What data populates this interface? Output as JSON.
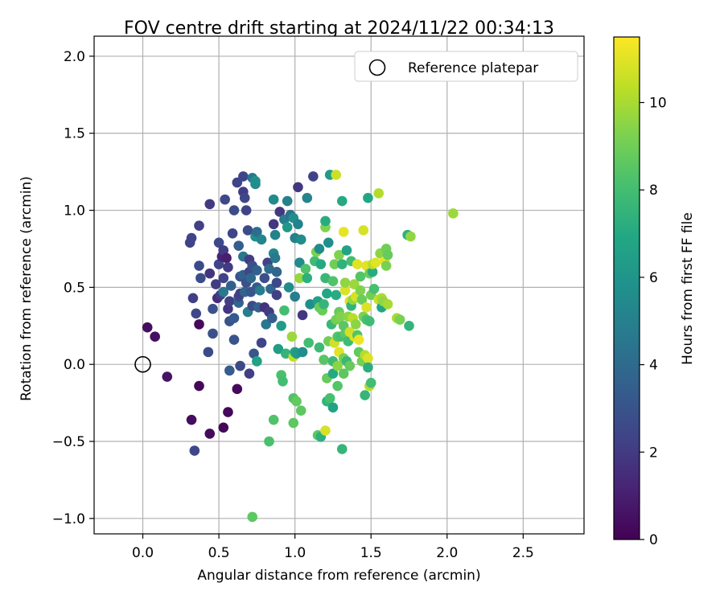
{
  "chart_data": {
    "type": "scatter",
    "title": "FOV centre drift starting at 2024/11/22 00:34:13",
    "xlabel": "Angular distance from reference (arcmin)",
    "ylabel": "Rotation from reference (arcmin)",
    "xlim": [
      -0.32,
      2.9
    ],
    "ylim": [
      -1.1,
      2.13
    ],
    "x_ticks": [
      0.0,
      0.5,
      1.0,
      1.5,
      2.0,
      2.5
    ],
    "x_tick_labels": [
      "0.0",
      "0.5",
      "1.0",
      "1.5",
      "2.0",
      "2.5"
    ],
    "y_ticks": [
      -1.0,
      -0.5,
      0.0,
      0.5,
      1.0,
      1.5,
      2.0
    ],
    "y_tick_labels": [
      "−1.0",
      "−0.5",
      "0.0",
      "0.5",
      "1.0",
      "1.5",
      "2.0"
    ],
    "grid": true,
    "legend": {
      "placement": "top-right",
      "entries": [
        "Reference platepar"
      ]
    },
    "reference_point": {
      "x": 0.0,
      "y": 0.0
    },
    "colorbar": {
      "label": "Hours from first FF file",
      "range": [
        0,
        11.5
      ],
      "ticks": [
        0,
        2,
        4,
        6,
        8,
        10
      ],
      "tick_labels": [
        "0",
        "2",
        "4",
        "6",
        "8",
        "10"
      ],
      "colormap": "viridis"
    },
    "points": [
      {
        "x": 0.03,
        "y": 0.24,
        "h": 0.4
      },
      {
        "x": 0.08,
        "y": 0.18,
        "h": 0.5
      },
      {
        "x": 0.16,
        "y": -0.08,
        "h": 0.6
      },
      {
        "x": 0.37,
        "y": 0.26,
        "h": 0.3
      },
      {
        "x": 0.37,
        "y": -0.14,
        "h": 0.2
      },
      {
        "x": 0.32,
        "y": -0.36,
        "h": 0.4
      },
      {
        "x": 0.44,
        "y": -0.45,
        "h": 0.3
      },
      {
        "x": 0.53,
        "y": -0.41,
        "h": 0.2
      },
      {
        "x": 0.56,
        "y": -0.31,
        "h": 0.2
      },
      {
        "x": 0.62,
        "y": -0.16,
        "h": 0.3
      },
      {
        "x": 0.34,
        "y": -0.56,
        "h": 2.5
      },
      {
        "x": 0.33,
        "y": 0.43,
        "h": 2.2
      },
      {
        "x": 0.35,
        "y": 0.33,
        "h": 2.5
      },
      {
        "x": 0.43,
        "y": 0.08,
        "h": 2.6
      },
      {
        "x": 0.46,
        "y": 0.2,
        "h": 2.8
      },
      {
        "x": 0.31,
        "y": 0.79,
        "h": 2.3
      },
      {
        "x": 0.32,
        "y": 0.82,
        "h": 2.4
      },
      {
        "x": 0.37,
        "y": 0.64,
        "h": 2.6
      },
      {
        "x": 0.38,
        "y": 0.56,
        "h": 2.7
      },
      {
        "x": 0.37,
        "y": 0.9,
        "h": 2.2
      },
      {
        "x": 0.44,
        "y": 1.04,
        "h": 2.0
      },
      {
        "x": 0.44,
        "y": 0.59,
        "h": 1.8
      },
      {
        "x": 0.46,
        "y": 0.36,
        "h": 2.9
      },
      {
        "x": 0.48,
        "y": 0.52,
        "h": 2.0
      },
      {
        "x": 0.49,
        "y": 0.43,
        "h": 1.5
      },
      {
        "x": 0.5,
        "y": 0.79,
        "h": 2.6
      },
      {
        "x": 0.5,
        "y": 0.65,
        "h": 2.4
      },
      {
        "x": 0.51,
        "y": 0.45,
        "h": 2.1
      },
      {
        "x": 0.53,
        "y": 0.56,
        "h": 2.3
      },
      {
        "x": 0.52,
        "y": 0.7,
        "h": 1.2
      },
      {
        "x": 0.53,
        "y": 0.47,
        "h": 4.6
      },
      {
        "x": 0.53,
        "y": 0.74,
        "h": 2.1
      },
      {
        "x": 0.54,
        "y": 1.07,
        "h": 2.6
      },
      {
        "x": 0.55,
        "y": 0.69,
        "h": 1.0
      },
      {
        "x": 0.56,
        "y": 0.63,
        "h": 2.0
      },
      {
        "x": 0.56,
        "y": 0.36,
        "h": 1.8
      },
      {
        "x": 0.57,
        "y": 0.28,
        "h": 3.0
      },
      {
        "x": 0.57,
        "y": 0.41,
        "h": 2.2
      },
      {
        "x": 0.58,
        "y": 0.51,
        "h": 3.5
      },
      {
        "x": 0.59,
        "y": 0.85,
        "h": 2.4
      },
      {
        "x": 0.6,
        "y": 1.0,
        "h": 2.7
      },
      {
        "x": 0.6,
        "y": 0.3,
        "h": 3.3
      },
      {
        "x": 0.6,
        "y": 0.16,
        "h": 3.0
      },
      {
        "x": 0.57,
        "y": -0.04,
        "h": 3.4
      },
      {
        "x": 0.62,
        "y": 1.18,
        "h": 2.3
      },
      {
        "x": 0.63,
        "y": 0.4,
        "h": 3.8
      },
      {
        "x": 0.63,
        "y": 0.77,
        "h": 3.4
      },
      {
        "x": 0.63,
        "y": 0.44,
        "h": 2.5
      },
      {
        "x": 0.64,
        "y": 0.57,
        "h": 3.0
      },
      {
        "x": 0.64,
        "y": 0.46,
        "h": 2.2
      },
      {
        "x": 0.64,
        "y": -0.01,
        "h": 2.6
      },
      {
        "x": 0.66,
        "y": 1.22,
        "h": 2.4
      },
      {
        "x": 0.66,
        "y": 1.12,
        "h": 2.1
      },
      {
        "x": 0.66,
        "y": 0.58,
        "h": 3.6
      },
      {
        "x": 0.66,
        "y": 0.7,
        "h": 4.5
      },
      {
        "x": 0.67,
        "y": 0.47,
        "h": 3.7
      },
      {
        "x": 0.67,
        "y": 1.08,
        "h": 2.5
      },
      {
        "x": 0.68,
        "y": 1.0,
        "h": 2.3
      },
      {
        "x": 0.68,
        "y": 0.53,
        "h": 2.9
      },
      {
        "x": 0.69,
        "y": 0.87,
        "h": 2.7
      },
      {
        "x": 0.69,
        "y": 0.34,
        "h": 4.9
      },
      {
        "x": 0.7,
        "y": 0.6,
        "h": 2.5
      },
      {
        "x": 0.7,
        "y": 0.68,
        "h": 2.1
      },
      {
        "x": 0.71,
        "y": 0.47,
        "h": 3.1
      },
      {
        "x": 0.71,
        "y": 0.56,
        "h": 3.9
      },
      {
        "x": 0.72,
        "y": 0.38,
        "h": 2.6
      },
      {
        "x": 0.72,
        "y": 1.21,
        "h": 4.6
      },
      {
        "x": 0.72,
        "y": 0.64,
        "h": 2.9
      },
      {
        "x": 0.73,
        "y": 0.07,
        "h": 3.1
      },
      {
        "x": 0.7,
        "y": -0.06,
        "h": 2.2
      },
      {
        "x": 0.74,
        "y": 1.19,
        "h": 5.9
      },
      {
        "x": 0.74,
        "y": 1.17,
        "h": 5.6
      },
      {
        "x": 0.74,
        "y": 0.83,
        "h": 5.7
      },
      {
        "x": 0.75,
        "y": 0.86,
        "h": 4.1
      },
      {
        "x": 0.75,
        "y": 0.61,
        "h": 3.6
      },
      {
        "x": 0.75,
        "y": 0.5,
        "h": 3.3
      },
      {
        "x": 0.75,
        "y": 0.02,
        "h": 6.6
      },
      {
        "x": 0.76,
        "y": 0.37,
        "h": 3.6
      },
      {
        "x": 0.77,
        "y": 0.48,
        "h": 4.8
      },
      {
        "x": 0.78,
        "y": 0.81,
        "h": 5.2
      },
      {
        "x": 0.78,
        "y": 0.14,
        "h": 2.4
      },
      {
        "x": 0.8,
        "y": 0.37,
        "h": 1.7
      },
      {
        "x": 0.8,
        "y": 0.56,
        "h": 2.8
      },
      {
        "x": 0.81,
        "y": 0.26,
        "h": 4.5
      },
      {
        "x": 0.82,
        "y": 0.66,
        "h": 2.3
      },
      {
        "x": 0.83,
        "y": 0.62,
        "h": 4.1
      },
      {
        "x": 0.83,
        "y": 0.34,
        "h": 2.0
      },
      {
        "x": 0.84,
        "y": 0.49,
        "h": 3.9
      },
      {
        "x": 0.85,
        "y": 0.3,
        "h": 3.5
      },
      {
        "x": 0.86,
        "y": 0.72,
        "h": 5.3
      },
      {
        "x": 0.86,
        "y": 1.07,
        "h": 5.5
      },
      {
        "x": 0.86,
        "y": 0.91,
        "h": 1.9
      },
      {
        "x": 0.87,
        "y": 0.69,
        "h": 4.6
      },
      {
        "x": 0.87,
        "y": 0.84,
        "h": 5.1
      },
      {
        "x": 0.88,
        "y": 0.53,
        "h": 2.6
      },
      {
        "x": 0.88,
        "y": 0.6,
        "h": 3.8
      },
      {
        "x": 0.88,
        "y": 0.45,
        "h": 2.2
      },
      {
        "x": 0.89,
        "y": 0.1,
        "h": 6.4
      },
      {
        "x": 0.86,
        "y": -0.36,
        "h": 8.3
      },
      {
        "x": 0.83,
        "y": -0.5,
        "h": 8.2
      },
      {
        "x": 0.72,
        "y": -0.99,
        "h": 8.6
      },
      {
        "x": 0.9,
        "y": 0.99,
        "h": 1.9
      },
      {
        "x": 0.91,
        "y": 0.25,
        "h": 6.4
      },
      {
        "x": 0.91,
        "y": -0.07,
        "h": 8.2
      },
      {
        "x": 0.92,
        "y": -0.11,
        "h": 8.0
      },
      {
        "x": 0.93,
        "y": 0.94,
        "h": 4.8
      },
      {
        "x": 0.93,
        "y": 0.35,
        "h": 8.0
      },
      {
        "x": 0.94,
        "y": 0.07,
        "h": 7.5
      },
      {
        "x": 0.95,
        "y": 1.06,
        "h": 5.1
      },
      {
        "x": 0.95,
        "y": 0.89,
        "h": 6.1
      },
      {
        "x": 0.96,
        "y": 0.5,
        "h": 5.6
      },
      {
        "x": 0.97,
        "y": 0.97,
        "h": 4.3
      },
      {
        "x": 0.98,
        "y": 0.18,
        "h": 9.8
      },
      {
        "x": 0.99,
        "y": 0.95,
        "h": 5.7
      },
      {
        "x": 0.99,
        "y": 0.05,
        "h": 10.4
      },
      {
        "x": 0.99,
        "y": -0.22,
        "h": 8.3
      },
      {
        "x": 0.99,
        "y": -0.38,
        "h": 8.6
      },
      {
        "x": 1.0,
        "y": 0.82,
        "h": 5.0
      },
      {
        "x": 1.0,
        "y": 0.08,
        "h": 6.7
      },
      {
        "x": 1.0,
        "y": 0.44,
        "h": 4.9
      },
      {
        "x": 1.01,
        "y": 0.07,
        "h": 6.2
      },
      {
        "x": 1.01,
        "y": -0.24,
        "h": 8.7
      },
      {
        "x": 1.02,
        "y": 1.15,
        "h": 1.9
      },
      {
        "x": 1.02,
        "y": 0.91,
        "h": 5.1
      },
      {
        "x": 1.03,
        "y": 0.66,
        "h": 5.5
      },
      {
        "x": 1.03,
        "y": 0.56,
        "h": 9.7
      },
      {
        "x": 1.04,
        "y": -0.3,
        "h": 8.6
      },
      {
        "x": 1.04,
        "y": 0.81,
        "h": 5.6
      },
      {
        "x": 1.05,
        "y": 0.32,
        "h": 1.9
      },
      {
        "x": 1.05,
        "y": 0.08,
        "h": 5.6
      },
      {
        "x": 1.07,
        "y": 0.62,
        "h": 8.3
      },
      {
        "x": 1.08,
        "y": 1.08,
        "h": 5.2
      },
      {
        "x": 1.08,
        "y": 0.56,
        "h": 7.3
      },
      {
        "x": 1.09,
        "y": 0.14,
        "h": 8.0
      },
      {
        "x": 1.1,
        "y": 0.39,
        "h": 5.7
      },
      {
        "x": 1.12,
        "y": 1.22,
        "h": 2.3
      },
      {
        "x": 1.13,
        "y": 0.67,
        "h": 7.9
      },
      {
        "x": 1.14,
        "y": 0.73,
        "h": 9.2
      },
      {
        "x": 1.15,
        "y": 0.41,
        "h": 6.5
      },
      {
        "x": 1.15,
        "y": -0.46,
        "h": 8.6
      },
      {
        "x": 1.16,
        "y": 0.11,
        "h": 7.8
      },
      {
        "x": 1.16,
        "y": 0.37,
        "h": 8.8
      },
      {
        "x": 1.16,
        "y": 0.75,
        "h": 5.5
      },
      {
        "x": 1.17,
        "y": 0.65,
        "h": 7.0
      },
      {
        "x": 1.17,
        "y": -0.47,
        "h": 7.3
      },
      {
        "x": 1.18,
        "y": 0.35,
        "h": 8.9
      },
      {
        "x": 1.19,
        "y": 0.39,
        "h": 7.6
      },
      {
        "x": 1.19,
        "y": 0.03,
        "h": 8.5
      },
      {
        "x": 1.2,
        "y": 0.56,
        "h": 7.7
      },
      {
        "x": 1.2,
        "y": 0.89,
        "h": 9.3
      },
      {
        "x": 1.2,
        "y": 0.93,
        "h": 7.1
      },
      {
        "x": 1.2,
        "y": -0.43,
        "h": 10.8
      },
      {
        "x": 1.21,
        "y": 0.46,
        "h": 6.9
      },
      {
        "x": 1.21,
        "y": -0.09,
        "h": 8.8
      },
      {
        "x": 1.21,
        "y": -0.24,
        "h": 7.5
      },
      {
        "x": 1.22,
        "y": 0.79,
        "h": 5.7
      },
      {
        "x": 1.22,
        "y": 0.15,
        "h": 9.0
      },
      {
        "x": 1.23,
        "y": 1.23,
        "h": 6.3
      },
      {
        "x": 1.23,
        "y": -0.22,
        "h": 8.1
      },
      {
        "x": 1.24,
        "y": 0.26,
        "h": 7.7
      },
      {
        "x": 1.25,
        "y": -0.28,
        "h": 6.7
      },
      {
        "x": 1.25,
        "y": 0.54,
        "h": 8.3
      },
      {
        "x": 1.25,
        "y": 0.02,
        "h": 7.8
      },
      {
        "x": 1.25,
        "y": -0.06,
        "h": 7.0
      },
      {
        "x": 1.26,
        "y": 0.65,
        "h": 9.0
      },
      {
        "x": 1.26,
        "y": 0.14,
        "h": 10.7
      },
      {
        "x": 1.27,
        "y": 0.45,
        "h": 7.1
      },
      {
        "x": 1.27,
        "y": 1.23,
        "h": 10.6
      },
      {
        "x": 1.27,
        "y": 0.29,
        "h": 9.1
      },
      {
        "x": 1.28,
        "y": 0.18,
        "h": 8.4
      },
      {
        "x": 1.28,
        "y": -0.01,
        "h": 9.5
      },
      {
        "x": 1.28,
        "y": -0.14,
        "h": 8.4
      },
      {
        "x": 1.29,
        "y": 0.34,
        "h": 8.8
      },
      {
        "x": 1.29,
        "y": 0.71,
        "h": 9.3
      },
      {
        "x": 1.29,
        "y": 0.08,
        "h": 11.0
      },
      {
        "x": 1.3,
        "y": 0.31,
        "h": 9.3
      },
      {
        "x": 1.3,
        "y": 0.18,
        "h": 8.1
      },
      {
        "x": 1.31,
        "y": -0.55,
        "h": 7.6
      },
      {
        "x": 1.31,
        "y": 1.06,
        "h": 7.0
      },
      {
        "x": 1.31,
        "y": 0.65,
        "h": 7.4
      },
      {
        "x": 1.32,
        "y": 0.86,
        "h": 11.1
      },
      {
        "x": 1.32,
        "y": 0.25,
        "h": 8.5
      },
      {
        "x": 1.32,
        "y": 0.04,
        "h": 9.1
      },
      {
        "x": 1.32,
        "y": -0.06,
        "h": 8.6
      },
      {
        "x": 1.33,
        "y": 0.2,
        "h": 8.6
      },
      {
        "x": 1.33,
        "y": 0.48,
        "h": 10.9
      },
      {
        "x": 1.33,
        "y": 0.53,
        "h": 9.6
      },
      {
        "x": 1.34,
        "y": 0.74,
        "h": 6.7
      },
      {
        "x": 1.34,
        "y": 0.02,
        "h": 7.7
      },
      {
        "x": 1.35,
        "y": 0.31,
        "h": 9.5
      },
      {
        "x": 1.35,
        "y": 0.15,
        "h": 7.9
      },
      {
        "x": 1.36,
        "y": -0.01,
        "h": 8.8
      },
      {
        "x": 1.36,
        "y": 0.21,
        "h": 10.7
      },
      {
        "x": 1.36,
        "y": 0.41,
        "h": 10.9
      },
      {
        "x": 1.37,
        "y": 0.38,
        "h": 7.5
      },
      {
        "x": 1.37,
        "y": 0.67,
        "h": 8.0
      },
      {
        "x": 1.38,
        "y": 0.42,
        "h": 9.7
      },
      {
        "x": 1.38,
        "y": 0.3,
        "h": 10.3
      },
      {
        "x": 1.39,
        "y": 0.18,
        "h": 10.9
      },
      {
        "x": 1.39,
        "y": 0.52,
        "h": 9.8
      },
      {
        "x": 1.4,
        "y": 0.44,
        "h": 10.8
      },
      {
        "x": 1.4,
        "y": 0.26,
        "h": 9.5
      },
      {
        "x": 1.41,
        "y": 0.19,
        "h": 8.4
      },
      {
        "x": 1.41,
        "y": 0.65,
        "h": 11.0
      },
      {
        "x": 1.42,
        "y": 0.16,
        "h": 11.2
      },
      {
        "x": 1.42,
        "y": 0.08,
        "h": 8.7
      },
      {
        "x": 1.43,
        "y": 0.57,
        "h": 8.4
      },
      {
        "x": 1.43,
        "y": 0.48,
        "h": 9.3
      },
      {
        "x": 1.44,
        "y": 0.42,
        "h": 8.9
      },
      {
        "x": 1.44,
        "y": 0.02,
        "h": 9.1
      },
      {
        "x": 1.45,
        "y": 0.87,
        "h": 10.8
      },
      {
        "x": 1.45,
        "y": 0.31,
        "h": 9.2
      },
      {
        "x": 1.46,
        "y": 0.06,
        "h": 10.2
      },
      {
        "x": 1.46,
        "y": -0.2,
        "h": 7.6
      },
      {
        "x": 1.47,
        "y": 0.64,
        "h": 11.0
      },
      {
        "x": 1.47,
        "y": 0.37,
        "h": 10.9
      },
      {
        "x": 1.47,
        "y": 0.29,
        "h": 8.2
      },
      {
        "x": 1.48,
        "y": 0.04,
        "h": 10.9
      },
      {
        "x": 1.48,
        "y": -0.02,
        "h": 7.2
      },
      {
        "x": 1.48,
        "y": 1.08,
        "h": 6.9
      },
      {
        "x": 1.49,
        "y": 0.59,
        "h": 8.9
      },
      {
        "x": 1.49,
        "y": -0.14,
        "h": 10.2
      },
      {
        "x": 1.49,
        "y": 0.28,
        "h": 7.9
      },
      {
        "x": 1.5,
        "y": -0.12,
        "h": 8.0
      },
      {
        "x": 1.5,
        "y": 0.45,
        "h": 9.0
      },
      {
        "x": 1.51,
        "y": 0.6,
        "h": 7.1
      },
      {
        "x": 1.51,
        "y": 0.65,
        "h": 10.3
      },
      {
        "x": 1.52,
        "y": 0.49,
        "h": 8.1
      },
      {
        "x": 1.53,
        "y": 0.66,
        "h": 11.0
      },
      {
        "x": 1.55,
        "y": 1.11,
        "h": 10.2
      },
      {
        "x": 1.55,
        "y": 0.42,
        "h": 10.5
      },
      {
        "x": 1.56,
        "y": 0.72,
        "h": 9.5
      },
      {
        "x": 1.57,
        "y": 0.37,
        "h": 6.8
      },
      {
        "x": 1.57,
        "y": 0.43,
        "h": 10.1
      },
      {
        "x": 1.58,
        "y": 0.41,
        "h": 9.6
      },
      {
        "x": 1.59,
        "y": 0.67,
        "h": 11.1
      },
      {
        "x": 1.6,
        "y": 0.75,
        "h": 9.0
      },
      {
        "x": 1.6,
        "y": 0.64,
        "h": 9.2
      },
      {
        "x": 1.61,
        "y": 0.71,
        "h": 8.8
      },
      {
        "x": 1.61,
        "y": 0.39,
        "h": 10.0
      },
      {
        "x": 1.67,
        "y": 0.3,
        "h": 10.0
      },
      {
        "x": 1.69,
        "y": 0.29,
        "h": 9.2
      },
      {
        "x": 1.74,
        "y": 0.84,
        "h": 7.3
      },
      {
        "x": 1.75,
        "y": 0.25,
        "h": 7.5
      },
      {
        "x": 1.76,
        "y": 0.83,
        "h": 9.6
      },
      {
        "x": 2.04,
        "y": 0.98,
        "h": 9.8
      }
    ]
  },
  "colors": {
    "grid": "#b0b0b0",
    "axes": "#000000",
    "background": "#ffffff",
    "legend_border": "#cccccc"
  }
}
